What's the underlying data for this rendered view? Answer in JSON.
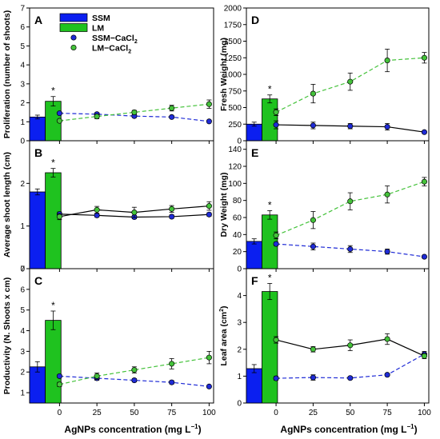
{
  "figure": {
    "x_axis_label": "AgNPs concentration (mg L",
    "x_axis_exponent": "−1",
    "x_axis_close": ")"
  },
  "legend": {
    "items": [
      {
        "label": "SSM",
        "kind": "bar",
        "color": "#0b1ff0"
      },
      {
        "label": "LM",
        "kind": "bar",
        "color": "#1fc21f"
      },
      {
        "label": "SSM−CaCl",
        "sub": "2",
        "kind": "point",
        "color": "#1f2bd6"
      },
      {
        "label": "LM−CaCl",
        "sub": "2",
        "kind": "point",
        "color": "#44c23a"
      }
    ]
  },
  "colors": {
    "ssm_bar": "#0b1ff0",
    "lm_bar": "#1fc21f",
    "ssm_point": "#1f2bd6",
    "lm_point": "#44c23a",
    "ssm_line": "#1f2bd6",
    "lm_line": "#44c23a",
    "solid_line": "#000000"
  },
  "chart_data": [
    {
      "panel": "A",
      "type": "bar+line",
      "ylabel": "Proliferation (number of shoots)",
      "ylim": [
        0,
        7
      ],
      "yticks": [
        0,
        1,
        2,
        3,
        4,
        5,
        6,
        7
      ],
      "xlim": [
        -20,
        103
      ],
      "xticks": [
        0,
        25,
        50,
        75,
        100
      ],
      "bars": [
        {
          "name": "SSM",
          "value": 1.25,
          "err": 0.1
        },
        {
          "name": "LM",
          "value": 2.08,
          "err": 0.25
        }
      ],
      "significance": "*",
      "series": [
        {
          "name": "SSM−CaCl2",
          "style": "dashed",
          "x": [
            0,
            25,
            50,
            75,
            100
          ],
          "y": [
            1.45,
            1.4,
            1.3,
            1.25,
            1.02
          ],
          "err": [
            0.05,
            0.08,
            0.08,
            0.07,
            0.04
          ]
        },
        {
          "name": "LM−CaCl2",
          "style": "dashed",
          "x": [
            0,
            25,
            50,
            75,
            100
          ],
          "y": [
            1.05,
            1.28,
            1.5,
            1.72,
            1.93
          ],
          "err": [
            0.05,
            0.12,
            0.1,
            0.15,
            0.22
          ]
        }
      ],
      "show_xticklabels": false
    },
    {
      "panel": "B",
      "type": "bar+line",
      "ylabel": "Average shoot length (cm)",
      "ylim": [
        0,
        3
      ],
      "yticks": [
        0,
        1,
        2
      ],
      "xlim": [
        -20,
        103
      ],
      "xticks": [
        0,
        25,
        50,
        75,
        100
      ],
      "bars": [
        {
          "name": "SSM",
          "value": 1.8,
          "err": 0.07
        },
        {
          "name": "LM",
          "value": 2.25,
          "err": 0.1
        }
      ],
      "significance": "*",
      "series": [
        {
          "name": "SSM−CaCl2",
          "style": "solid",
          "x": [
            0,
            25,
            50,
            75,
            100
          ],
          "y": [
            1.28,
            1.25,
            1.21,
            1.22,
            1.27
          ],
          "err": [
            0.05,
            0.04,
            0.04,
            0.04,
            0.04
          ]
        },
        {
          "name": "LM−CaCl2",
          "style": "solid",
          "x": [
            0,
            25,
            50,
            75,
            100
          ],
          "y": [
            1.22,
            1.38,
            1.32,
            1.4,
            1.47
          ],
          "err": [
            0.07,
            0.08,
            0.12,
            0.08,
            0.1
          ]
        }
      ],
      "show_xticklabels": false
    },
    {
      "panel": "C",
      "type": "bar+line",
      "ylabel": "Productivity (N. Shoots x cm)",
      "ylim": [
        0.5,
        7
      ],
      "yticks": [
        1,
        2,
        3,
        4,
        5,
        6,
        7
      ],
      "xlim": [
        -20,
        103
      ],
      "xticks": [
        0,
        25,
        50,
        75,
        100
      ],
      "bars": [
        {
          "name": "SSM",
          "value": 2.25,
          "err": 0.25
        },
        {
          "name": "LM",
          "value": 4.5,
          "err": 0.45
        }
      ],
      "significance": "*",
      "series": [
        {
          "name": "SSM−CaCl2",
          "style": "dashed",
          "x": [
            0,
            25,
            50,
            75,
            100
          ],
          "y": [
            1.8,
            1.7,
            1.6,
            1.5,
            1.3
          ],
          "err": [
            0.07,
            0.1,
            0.08,
            0.08,
            0.05
          ]
        },
        {
          "name": "LM−CaCl2",
          "style": "dashed",
          "x": [
            0,
            25,
            50,
            75,
            100
          ],
          "y": [
            1.4,
            1.8,
            2.1,
            2.4,
            2.7
          ],
          "err": [
            0.1,
            0.15,
            0.15,
            0.25,
            0.3
          ]
        }
      ],
      "show_xticklabels": true
    },
    {
      "panel": "D",
      "type": "bar+line",
      "ylabel": "Fresh Weight (mg)",
      "ylim": [
        0,
        2000
      ],
      "yticks": [
        0,
        250,
        500,
        750,
        1000,
        1250,
        1500,
        1750,
        2000
      ],
      "xlim": [
        -20,
        103
      ],
      "xticks": [
        0,
        25,
        50,
        75,
        100
      ],
      "bars": [
        {
          "name": "SSM",
          "value": 250,
          "err": 30
        },
        {
          "name": "LM",
          "value": 630,
          "err": 60
        }
      ],
      "significance": "*",
      "series": [
        {
          "name": "SSM−CaCl2",
          "style": "solid",
          "x": [
            0,
            25,
            50,
            75,
            100
          ],
          "y": [
            240,
            230,
            220,
            210,
            130
          ],
          "err": [
            60,
            50,
            40,
            50,
            20
          ]
        },
        {
          "name": "LM−CaCl2",
          "style": "dashed",
          "x": [
            0,
            25,
            50,
            75,
            100
          ],
          "y": [
            430,
            710,
            890,
            1210,
            1250
          ],
          "err": [
            50,
            140,
            130,
            170,
            80
          ]
        }
      ],
      "show_xticklabels": false
    },
    {
      "panel": "E",
      "type": "bar+line",
      "ylabel": "Dry Weight (mg)",
      "ylim": [
        0,
        150
      ],
      "yticks": [
        0,
        20,
        40,
        60,
        80,
        100,
        120,
        140
      ],
      "xlim": [
        -20,
        103
      ],
      "xticks": [
        0,
        25,
        50,
        75,
        100
      ],
      "bars": [
        {
          "name": "SSM",
          "value": 32,
          "err": 3
        },
        {
          "name": "LM",
          "value": 63,
          "err": 5
        }
      ],
      "significance": "*",
      "series": [
        {
          "name": "SSM−CaCl2",
          "style": "dashed",
          "x": [
            0,
            25,
            50,
            75,
            100
          ],
          "y": [
            29,
            26,
            23,
            20,
            14
          ],
          "err": [
            2,
            4,
            4,
            3,
            1
          ]
        },
        {
          "name": "LM−CaCl2",
          "style": "dashed",
          "x": [
            0,
            25,
            50,
            75,
            100
          ],
          "y": [
            39,
            57,
            79,
            87,
            102
          ],
          "err": [
            4,
            10,
            10,
            10,
            5
          ]
        }
      ],
      "show_xticklabels": false
    },
    {
      "panel": "F",
      "type": "bar+line",
      "ylabel": "Leaf area (cm",
      "ylabel_exp": "2",
      "ylabel_close": ")",
      "ylim": [
        0,
        5
      ],
      "yticks": [
        0,
        1,
        2,
        3,
        4
      ],
      "xlim": [
        -20,
        103
      ],
      "xticks": [
        0,
        25,
        50,
        75,
        100
      ],
      "bars": [
        {
          "name": "SSM",
          "value": 1.28,
          "err": 0.15
        },
        {
          "name": "LM",
          "value": 4.15,
          "err": 0.3
        }
      ],
      "significance": "*",
      "series": [
        {
          "name": "SSM−CaCl2",
          "style": "dashed",
          "x": [
            0,
            25,
            50,
            75,
            100
          ],
          "y": [
            0.92,
            0.95,
            0.93,
            1.05,
            1.82
          ],
          "err": [
            0.07,
            0.1,
            0.05,
            0.05,
            0.1
          ]
        },
        {
          "name": "LM−CaCl2",
          "style": "solid",
          "x": [
            0,
            25,
            50,
            75,
            100
          ],
          "y": [
            2.35,
            2.0,
            2.15,
            2.38,
            1.75
          ],
          "err": [
            0.12,
            0.1,
            0.2,
            0.2,
            0.1
          ]
        }
      ],
      "show_xticklabels": true
    }
  ]
}
